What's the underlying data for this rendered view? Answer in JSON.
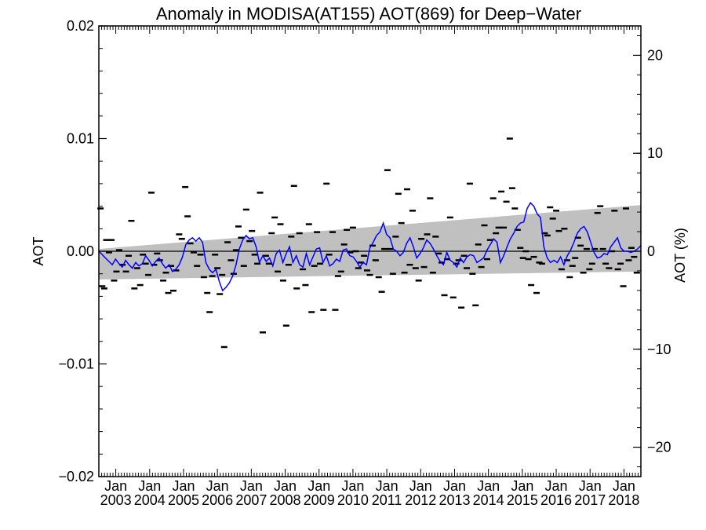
{
  "chart_data": {
    "type": "line",
    "title": "Anomaly in MODISA(AT155) AOT(869) for Deep−Water",
    "ylabel_left": "AOT",
    "ylabel_right": "AOT (%)",
    "ylim_left": [
      -0.02,
      0.02
    ],
    "ylim_right": [
      -23,
      23
    ],
    "xlim_years": [
      2002.5,
      2018.5
    ],
    "yticks_left": [
      "−0.02",
      "−0.01",
      "0.00",
      "0.01",
      "0.02"
    ],
    "yticks_left_values": [
      -0.02,
      -0.01,
      0.0,
      0.01,
      0.02
    ],
    "yticks_right": [
      "−20",
      "−10",
      "0",
      "10",
      "20"
    ],
    "yticks_right_values": [
      -20,
      -10,
      0,
      10,
      20
    ],
    "xtick_top": "Jan",
    "xticks_years": [
      "2003",
      "2004",
      "2005",
      "2006",
      "2007",
      "2008",
      "2009",
      "2010",
      "2011",
      "2012",
      "2013",
      "2014",
      "2015",
      "2016",
      "2017",
      "2018"
    ],
    "band": {
      "start_year": 2002.5,
      "end_year": 2018.5,
      "upper": [
        0.0002,
        0.0041
      ],
      "lower": [
        -0.0025,
        -0.0018
      ]
    },
    "zero_line": 0.0,
    "colors": {
      "line": "#0000ff",
      "band": "#c0c0c0",
      "points": "#000000",
      "axis": "#000000"
    },
    "series_line_monthly": [
      0.0,
      -0.0003,
      -0.0006,
      -0.0009,
      -0.0012,
      -0.0007,
      -0.0011,
      -0.0014,
      -0.0008,
      -0.0012,
      -0.0015,
      -0.001,
      -0.0013,
      -0.0011,
      -0.0004,
      -0.0008,
      -0.0013,
      -0.0009,
      -0.0006,
      -0.0011,
      -0.0015,
      -0.0012,
      -0.0018,
      -0.0016,
      -0.0012,
      -0.0005,
      0.0006,
      0.001,
      0.0012,
      0.0009,
      0.0012,
      0.0008,
      -0.001,
      -0.0016,
      -0.0019,
      -0.0016,
      -0.0027,
      -0.0035,
      -0.0032,
      -0.0028,
      -0.0022,
      -0.0012,
      0.0002,
      0.001,
      0.0014,
      0.0011,
      0.0012,
      0.0004,
      -0.001,
      -0.0004,
      -0.0009,
      -0.0006,
      -0.0013,
      -0.0002,
      0.0001,
      -0.001,
      -0.0002,
      0.0004,
      -0.001,
      -0.0004,
      -0.0012,
      -0.0014,
      -0.0002,
      -0.0012,
      -0.0005,
      0.0002,
      0.0003,
      -0.001,
      -0.0004,
      -0.0013,
      -0.0011,
      -0.0007,
      -0.0009,
      0.0001,
      0.0002,
      -0.0004,
      -0.0005,
      -0.0009,
      -0.0014,
      -0.001,
      -0.0012,
      0.0003,
      0.0008,
      0.0014,
      0.0017,
      0.0025,
      0.0015,
      0.0012,
      0.0002,
      0.0,
      -0.0004,
      -0.0001,
      0.0007,
      0.0012,
      0.0004,
      -0.0006,
      -0.0002,
      0.0003,
      0.001,
      0.0007,
      0.0002,
      -0.0004,
      -0.0009,
      -0.0012,
      -0.0001,
      -0.0008,
      -0.001,
      -0.0014,
      -0.0006,
      -0.001,
      -0.0005,
      -0.0003,
      -0.0004,
      -0.001,
      -0.0008,
      -0.0006,
      0.0001,
      0.0006,
      0.0011,
      0.0008,
      -0.001,
      -0.0004,
      0.0004,
      0.0011,
      0.0016,
      0.0022,
      0.0025,
      0.0026,
      0.0038,
      0.0043,
      0.004,
      0.0033,
      0.003,
      0.0004,
      -0.0006,
      -0.001,
      -0.0008,
      -0.001,
      -0.0005,
      -0.0012,
      -0.0004,
      0.0001,
      0.0008,
      0.0016,
      0.002,
      0.0022,
      0.0017,
      0.0008,
      -0.0001,
      -0.0006,
      -0.0005,
      -0.0002,
      -0.0003,
      0.0004,
      0.0008,
      0.0012,
      0.0003,
      0.0,
      0.0,
      -0.0001,
      0.0,
      0.0002,
      0.0005
    ],
    "monthly_points": [
      [
        2002.55,
        0.0038
      ],
      [
        2002.6,
        -0.0031
      ],
      [
        2002.66,
        -0.0033
      ],
      [
        2002.72,
        0.001
      ],
      [
        2002.8,
        -0.0001
      ],
      [
        2002.87,
        0.001
      ],
      [
        2002.95,
        -0.0026
      ],
      [
        2003.02,
        -0.0018
      ],
      [
        2003.1,
        0.0001
      ],
      [
        2003.2,
        -0.0012
      ],
      [
        2003.3,
        -0.0018
      ],
      [
        2003.38,
        -0.0004
      ],
      [
        2003.46,
        0.0027
      ],
      [
        2003.55,
        -0.0033
      ],
      [
        2003.63,
        -0.0015
      ],
      [
        2003.72,
        -0.003
      ],
      [
        2003.8,
        -0.0003
      ],
      [
        2003.88,
        -0.0011
      ],
      [
        2003.96,
        -0.0021
      ],
      [
        2004.05,
        0.0052
      ],
      [
        2004.13,
        -0.0012
      ],
      [
        2004.22,
        -0.0002
      ],
      [
        2004.3,
        -0.0008
      ],
      [
        2004.4,
        -0.0026
      ],
      [
        2004.48,
        -0.0019
      ],
      [
        2004.55,
        -0.0037
      ],
      [
        2004.63,
        -0.0013
      ],
      [
        2004.7,
        -0.0035
      ],
      [
        2004.78,
        -0.0017
      ],
      [
        2004.87,
        0.0015
      ],
      [
        2004.95,
        0.0011
      ],
      [
        2005.05,
        0.0057
      ],
      [
        2005.12,
        0.0031
      ],
      [
        2005.2,
        0.0007
      ],
      [
        2005.3,
        -0.0001
      ],
      [
        2005.4,
        -0.0013
      ],
      [
        2005.5,
        -0.0003
      ],
      [
        2005.6,
        -0.0023
      ],
      [
        2005.7,
        -0.0037
      ],
      [
        2005.77,
        -0.0054
      ],
      [
        2005.85,
        -0.0022
      ],
      [
        2005.93,
        -0.0003
      ],
      [
        2006.0,
        -0.0015
      ],
      [
        2006.07,
        -0.0038
      ],
      [
        2006.14,
        -0.0021
      ],
      [
        2006.2,
        -0.0085
      ],
      [
        2006.3,
        0.0008
      ],
      [
        2006.4,
        -0.0008
      ],
      [
        2006.48,
        -0.002
      ],
      [
        2006.55,
        0.0001
      ],
      [
        2006.62,
        0.0022
      ],
      [
        2006.7,
        0.0012
      ],
      [
        2006.78,
        -0.0013
      ],
      [
        2006.85,
        0.0037
      ],
      [
        2006.95,
        0.0009
      ],
      [
        2007.02,
        0.0018
      ],
      [
        2007.1,
        -0.0003
      ],
      [
        2007.18,
        -0.0011
      ],
      [
        2007.26,
        0.0052
      ],
      [
        2007.34,
        -0.0072
      ],
      [
        2007.43,
        -0.0004
      ],
      [
        2007.52,
        -0.0011
      ],
      [
        2007.6,
        0.0016
      ],
      [
        2007.69,
        0.003
      ],
      [
        2007.78,
        -0.0018
      ],
      [
        2007.86,
        0.0024
      ],
      [
        2007.94,
        -0.0026
      ],
      [
        2008.03,
        -0.0066
      ],
      [
        2008.1,
        -0.0012
      ],
      [
        2008.18,
        0.0013
      ],
      [
        2008.26,
        0.0058
      ],
      [
        2008.34,
        -0.0033
      ],
      [
        2008.42,
        0.0016
      ],
      [
        2008.52,
        -0.0016
      ],
      [
        2008.6,
        -0.003
      ],
      [
        2008.7,
        0.0024
      ],
      [
        2008.78,
        -0.0054
      ],
      [
        2008.86,
        -0.0013
      ],
      [
        2008.94,
        0.0017
      ],
      [
        2009.03,
        -0.0011
      ],
      [
        2009.13,
        -0.0052
      ],
      [
        2009.22,
        0.006
      ],
      [
        2009.3,
        -0.0003
      ],
      [
        2009.4,
        0.0017
      ],
      [
        2009.48,
        -0.0052
      ],
      [
        2009.56,
        -0.0022
      ],
      [
        2009.65,
        -0.0018
      ],
      [
        2009.74,
        0.0006
      ],
      [
        2009.82,
        0.0019
      ],
      [
        2009.92,
        -0.0001
      ],
      [
        2010.0,
        0.0021
      ],
      [
        2010.08,
        0.0
      ],
      [
        2010.16,
        -0.0015
      ],
      [
        2010.24,
        -0.001
      ],
      [
        2010.33,
        -0.0004
      ],
      [
        2010.42,
        -0.0017
      ],
      [
        2010.5,
        -0.0021
      ],
      [
        2010.58,
        0.0005
      ],
      [
        2010.67,
        -0.0008
      ],
      [
        2010.76,
        -0.0023
      ],
      [
        2010.85,
        -0.0036
      ],
      [
        2010.93,
        0.0002
      ],
      [
        2011.02,
        0.0072
      ],
      [
        2011.1,
        0.0002
      ],
      [
        2011.18,
        -0.002
      ],
      [
        2011.26,
        0.0013
      ],
      [
        2011.34,
        0.0051
      ],
      [
        2011.43,
        0.0025
      ],
      [
        2011.52,
        -0.0019
      ],
      [
        2011.6,
        0.0055
      ],
      [
        2011.68,
        -0.0012
      ],
      [
        2011.76,
        0.0036
      ],
      [
        2011.85,
        -0.0015
      ],
      [
        2011.94,
        -0.0026
      ],
      [
        2012.02,
        0.0011
      ],
      [
        2012.1,
        -0.0014
      ],
      [
        2012.19,
        0.0015
      ],
      [
        2012.28,
        0.0047
      ],
      [
        2012.36,
        -0.0019
      ],
      [
        2012.44,
        0.0013
      ],
      [
        2012.53,
        -0.0002
      ],
      [
        2012.62,
        -0.001
      ],
      [
        2012.7,
        -0.0039
      ],
      [
        2012.78,
        -0.0007
      ],
      [
        2012.87,
        0.003
      ],
      [
        2012.96,
        -0.0041
      ],
      [
        2013.05,
        -0.0011
      ],
      [
        2013.12,
        -0.0008
      ],
      [
        2013.2,
        -0.005
      ],
      [
        2013.28,
        -0.0004
      ],
      [
        2013.36,
        -0.0015
      ],
      [
        2013.45,
        0.006
      ],
      [
        2013.53,
        -0.002
      ],
      [
        2013.62,
        -0.0048
      ],
      [
        2013.7,
        0.0006
      ],
      [
        2013.79,
        -0.0014
      ],
      [
        2013.88,
        0.0023
      ],
      [
        2013.96,
        -0.0007
      ],
      [
        2014.05,
        0.001
      ],
      [
        2014.14,
        0.0047
      ],
      [
        2014.22,
        0.0016
      ],
      [
        2014.3,
        0.0021
      ],
      [
        2014.38,
        0.0053
      ],
      [
        2014.45,
        0.0021
      ],
      [
        2014.53,
        0.0044
      ],
      [
        2014.63,
        0.01
      ],
      [
        2014.7,
        0.0056
      ],
      [
        2014.78,
        0.0038
      ],
      [
        2014.86,
        0.0019
      ],
      [
        2014.94,
        0.0003
      ],
      [
        2015.02,
        -0.0006
      ],
      [
        2015.1,
        0.0
      ],
      [
        2015.18,
        -0.0007
      ],
      [
        2015.26,
        -0.003
      ],
      [
        2015.34,
        -0.0005
      ],
      [
        2015.42,
        -0.0037
      ],
      [
        2015.5,
        -0.001
      ],
      [
        2015.58,
        -0.0011
      ],
      [
        2015.66,
        0.0016
      ],
      [
        2015.74,
        0.0014
      ],
      [
        2015.82,
        0.0039
      ],
      [
        2015.9,
        0.0029
      ],
      [
        2016.0,
        0.0036
      ],
      [
        2016.08,
        0.0018
      ],
      [
        2016.16,
        -0.0016
      ],
      [
        2016.24,
        0.002
      ],
      [
        2016.32,
        -0.0008
      ],
      [
        2016.4,
        -0.0023
      ],
      [
        2016.48,
        -0.0013
      ],
      [
        2016.56,
        -0.0006
      ],
      [
        2016.64,
        0.0012
      ],
      [
        2016.72,
        0.0005
      ],
      [
        2016.8,
        -0.0019
      ],
      [
        2016.9,
        0.0002
      ],
      [
        2016.98,
        -0.0016
      ],
      [
        2017.06,
        -0.0011
      ],
      [
        2017.14,
        0.0002
      ],
      [
        2017.22,
        0.0034
      ],
      [
        2017.3,
        0.004
      ],
      [
        2017.38,
        0.0002
      ],
      [
        2017.46,
        -0.0011
      ],
      [
        2017.56,
        -0.0015
      ],
      [
        2017.64,
        0.0
      ],
      [
        2017.72,
        0.0036
      ],
      [
        2017.82,
        -0.0016
      ],
      [
        2017.9,
        -0.0011
      ],
      [
        2017.98,
        -0.0031
      ],
      [
        2018.06,
        0.0038
      ],
      [
        2018.14,
        -0.0008
      ],
      [
        2018.22,
        0.0003
      ],
      [
        2018.3,
        -0.0005
      ],
      [
        2018.38,
        -0.0019
      ]
    ]
  }
}
